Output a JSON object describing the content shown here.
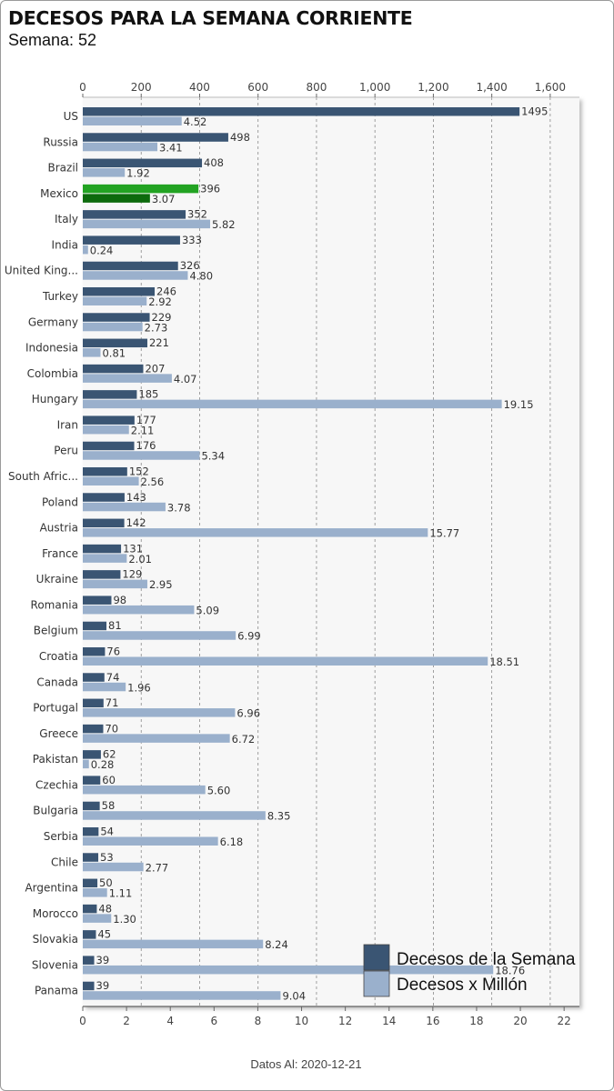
{
  "header": {
    "title": "DECESOS PARA LA SEMANA CORRIENTE",
    "subtitle": "Semana: 52"
  },
  "footer": {
    "text": "Datos Al: 2020-12-21"
  },
  "colors": {
    "deaths": "#3a5573",
    "per_million": "#9ab0cc",
    "highlight_deaths": "#22a322",
    "highlight_per_million": "#0c6a0c",
    "grid": "#8a8a8a",
    "plot_bg": "#f7f7f7"
  },
  "chart_data": {
    "type": "bar",
    "orientation": "horizontal",
    "highlight_category": "Mexico",
    "categories": [
      "US",
      "Russia",
      "Brazil",
      "Mexico",
      "Italy",
      "India",
      "United King...",
      "Turkey",
      "Germany",
      "Indonesia",
      "Colombia",
      "Hungary",
      "Iran",
      "Peru",
      "South Afric...",
      "Poland",
      "Austria",
      "France",
      "Ukraine",
      "Romania",
      "Belgium",
      "Croatia",
      "Canada",
      "Portugal",
      "Greece",
      "Pakistan",
      "Czechia",
      "Bulgaria",
      "Serbia",
      "Chile",
      "Argentina",
      "Morocco",
      "Slovakia",
      "Slovenia",
      "Panama"
    ],
    "series": [
      {
        "name": "Decesos de la Semana",
        "axis": "top",
        "values": [
          1495,
          498,
          408,
          396,
          352,
          333,
          326,
          246,
          229,
          221,
          207,
          185,
          177,
          176,
          152,
          143,
          142,
          131,
          129,
          98,
          81,
          76,
          74,
          71,
          70,
          62,
          60,
          58,
          54,
          53,
          50,
          48,
          45,
          39,
          39
        ],
        "labels": [
          "1495",
          "498",
          "408",
          "396",
          "352",
          "333",
          "326",
          "246",
          "229",
          "221",
          "207",
          "185",
          "177",
          "176",
          "152",
          "143",
          "142",
          "131",
          "129",
          "98",
          "81",
          "76",
          "74",
          "71",
          "70",
          "62",
          "60",
          "58",
          "54",
          "53",
          "50",
          "48",
          "45",
          "39",
          "39"
        ]
      },
      {
        "name": "Decesos x Millón",
        "axis": "bottom",
        "values": [
          4.52,
          3.41,
          1.92,
          3.07,
          5.82,
          0.24,
          4.8,
          2.92,
          2.73,
          0.81,
          4.07,
          19.15,
          2.11,
          5.34,
          2.56,
          3.78,
          15.77,
          2.01,
          2.95,
          5.09,
          6.99,
          18.51,
          1.96,
          6.96,
          6.72,
          0.28,
          5.6,
          8.35,
          6.18,
          2.77,
          1.11,
          1.3,
          8.24,
          18.76,
          9.04
        ],
        "labels": [
          "4.52",
          "3.41",
          "1.92",
          "3.07",
          "5.82",
          "0.24",
          "4.80",
          "2.92",
          "2.73",
          "0.81",
          "4.07",
          "19.15",
          "2.11",
          "5.34",
          "2.56",
          "3.78",
          "15.77",
          "2.01",
          "2.95",
          "5.09",
          "6.99",
          "18.51",
          "1.96",
          "6.96",
          "6.72",
          "0.28",
          "5.60",
          "8.35",
          "6.18",
          "2.77",
          "1.11",
          "1.30",
          "8.24",
          "18.76",
          "9.04"
        ]
      }
    ],
    "top_axis": {
      "range": [
        0,
        1700
      ],
      "ticks": [
        0,
        200,
        400,
        600,
        800,
        1000,
        1200,
        1400,
        1600
      ],
      "tick_labels": [
        "0",
        "200",
        "400",
        "600",
        "800",
        "1,000",
        "1,200",
        "1,400",
        "1,600"
      ]
    },
    "bottom_axis": {
      "range": [
        0,
        22.7
      ],
      "ticks": [
        0,
        2,
        4,
        6,
        8,
        10,
        12,
        14,
        16,
        18,
        20,
        22
      ],
      "tick_labels": [
        "0",
        "2",
        "4",
        "6",
        "8",
        "10",
        "12",
        "14",
        "16",
        "18",
        "20",
        "22"
      ]
    },
    "grid": true,
    "legend_position": "bottom-right"
  }
}
